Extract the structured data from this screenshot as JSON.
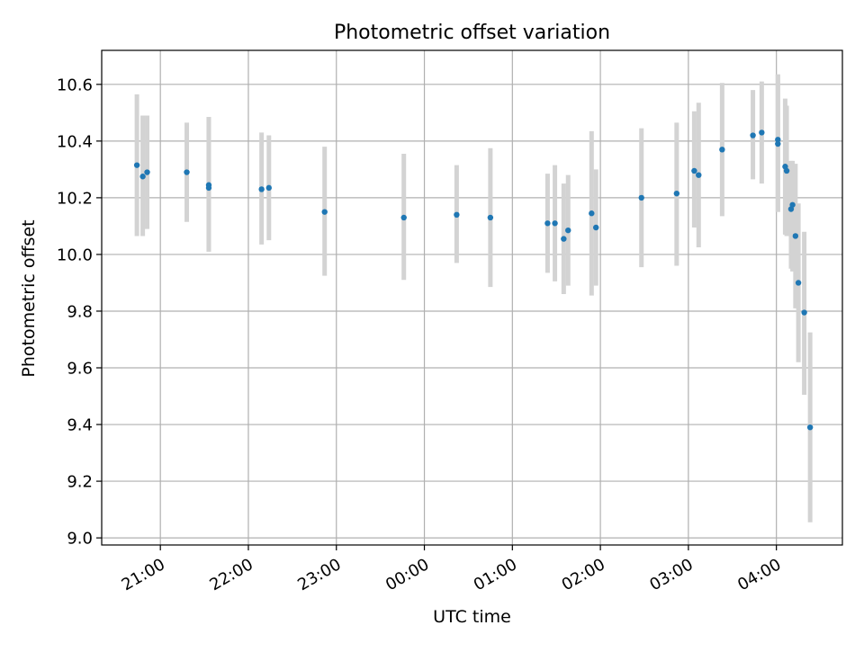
{
  "chart_data": {
    "type": "scatter",
    "title": "Photometric offset variation",
    "xlabel": "UTC time",
    "ylabel": "Photometric offset",
    "ylim": [
      8.975,
      10.72
    ],
    "xlim": [
      "2024-01-01T20:20",
      "2024-01-02T04:45"
    ],
    "grid": true,
    "x_ticks": [
      {
        "time": "2024-01-01T21:00",
        "label": "21:00"
      },
      {
        "time": "2024-01-01T22:00",
        "label": "22:00"
      },
      {
        "time": "2024-01-01T23:00",
        "label": "23:00"
      },
      {
        "time": "2024-01-02T00:00",
        "label": "00:00"
      },
      {
        "time": "2024-01-02T01:00",
        "label": "01:00"
      },
      {
        "time": "2024-01-02T02:00",
        "label": "02:00"
      },
      {
        "time": "2024-01-02T03:00",
        "label": "03:00"
      },
      {
        "time": "2024-01-02T04:00",
        "label": "04:00"
      }
    ],
    "y_ticks": [
      9.0,
      9.2,
      9.4,
      9.6,
      9.8,
      10.0,
      10.2,
      10.4,
      10.6
    ],
    "y_tick_labels": [
      "9.0",
      "9.2",
      "9.4",
      "9.6",
      "9.8",
      "10.0",
      "10.2",
      "10.4",
      "10.6"
    ],
    "marker_color": "#1f77b4",
    "errorbar_color": "#d3d3d3",
    "points": [
      {
        "t": "2024-01-01T20:44",
        "y": 10.315,
        "lo": 10.065,
        "hi": 10.565
      },
      {
        "t": "2024-01-01T20:48",
        "y": 10.275,
        "lo": 10.065,
        "hi": 10.49
      },
      {
        "t": "2024-01-01T20:51",
        "y": 10.29,
        "lo": 10.09,
        "hi": 10.49
      },
      {
        "t": "2024-01-01T21:18",
        "y": 10.29,
        "lo": 10.115,
        "hi": 10.465
      },
      {
        "t": "2024-01-01T21:33",
        "y": 10.245,
        "lo": 10.01,
        "hi": 10.485
      },
      {
        "t": "2024-01-01T21:33",
        "y": 10.235,
        "lo": 10.01,
        "hi": 10.485
      },
      {
        "t": "2024-01-01T22:09",
        "y": 10.23,
        "lo": 10.035,
        "hi": 10.43
      },
      {
        "t": "2024-01-01T22:14",
        "y": 10.235,
        "lo": 10.05,
        "hi": 10.42
      },
      {
        "t": "2024-01-01T22:52",
        "y": 10.15,
        "lo": 9.925,
        "hi": 10.38
      },
      {
        "t": "2024-01-01T23:46",
        "y": 10.13,
        "lo": 9.91,
        "hi": 10.355
      },
      {
        "t": "2024-01-02T00:22",
        "y": 10.14,
        "lo": 9.97,
        "hi": 10.315
      },
      {
        "t": "2024-01-02T00:45",
        "y": 10.13,
        "lo": 9.885,
        "hi": 10.375
      },
      {
        "t": "2024-01-02T01:24",
        "y": 10.11,
        "lo": 9.935,
        "hi": 10.285
      },
      {
        "t": "2024-01-02T01:29",
        "y": 10.11,
        "lo": 9.905,
        "hi": 10.315
      },
      {
        "t": "2024-01-02T01:35",
        "y": 10.055,
        "lo": 9.86,
        "hi": 10.25
      },
      {
        "t": "2024-01-02T01:38",
        "y": 10.085,
        "lo": 9.89,
        "hi": 10.28
      },
      {
        "t": "2024-01-02T01:54",
        "y": 10.145,
        "lo": 9.855,
        "hi": 10.435
      },
      {
        "t": "2024-01-02T01:57",
        "y": 10.095,
        "lo": 9.89,
        "hi": 10.3
      },
      {
        "t": "2024-01-02T02:28",
        "y": 10.2,
        "lo": 9.955,
        "hi": 10.445
      },
      {
        "t": "2024-01-02T02:52",
        "y": 10.215,
        "lo": 9.96,
        "hi": 10.465
      },
      {
        "t": "2024-01-02T03:04",
        "y": 10.295,
        "lo": 10.095,
        "hi": 10.505
      },
      {
        "t": "2024-01-02T03:07",
        "y": 10.28,
        "lo": 10.025,
        "hi": 10.535
      },
      {
        "t": "2024-01-02T03:23",
        "y": 10.37,
        "lo": 10.135,
        "hi": 10.605
      },
      {
        "t": "2024-01-02T03:44",
        "y": 10.42,
        "lo": 10.265,
        "hi": 10.58
      },
      {
        "t": "2024-01-02T03:50",
        "y": 10.43,
        "lo": 10.25,
        "hi": 10.61
      },
      {
        "t": "2024-01-02T04:01",
        "y": 10.405,
        "lo": 10.15,
        "hi": 10.635
      },
      {
        "t": "2024-01-02T04:01",
        "y": 10.39,
        "lo": 10.15,
        "hi": 10.635
      },
      {
        "t": "2024-01-02T04:06",
        "y": 10.31,
        "lo": 10.07,
        "hi": 10.55
      },
      {
        "t": "2024-01-02T04:07",
        "y": 10.295,
        "lo": 10.065,
        "hi": 10.525
      },
      {
        "t": "2024-01-02T04:10",
        "y": 10.16,
        "lo": 9.95,
        "hi": 10.33
      },
      {
        "t": "2024-01-02T04:11",
        "y": 10.175,
        "lo": 9.94,
        "hi": 10.33
      },
      {
        "t": "2024-01-02T04:13",
        "y": 10.065,
        "lo": 9.81,
        "hi": 10.32
      },
      {
        "t": "2024-01-02T04:15",
        "y": 9.9,
        "lo": 9.62,
        "hi": 10.18
      },
      {
        "t": "2024-01-02T04:19",
        "y": 9.795,
        "lo": 9.505,
        "hi": 10.08
      },
      {
        "t": "2024-01-02T04:23",
        "y": 9.39,
        "lo": 9.055,
        "hi": 9.725
      }
    ]
  }
}
